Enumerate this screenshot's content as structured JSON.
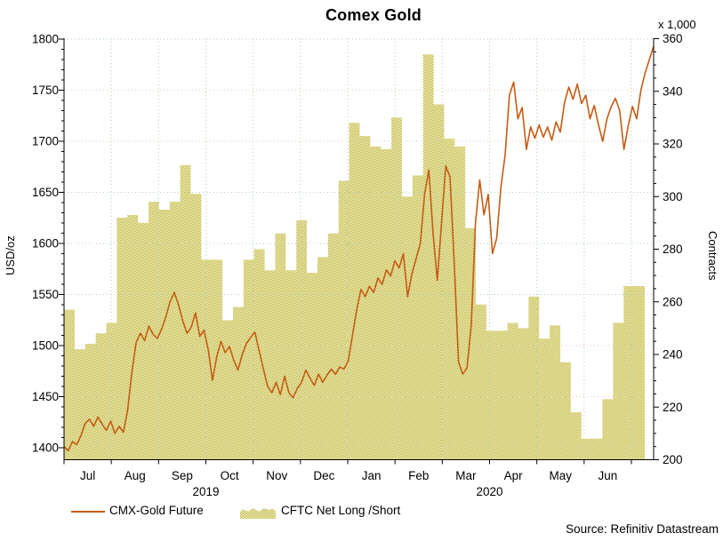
{
  "title": "Comex Gold",
  "source": "Source: Refinitiv Datastream",
  "legend": {
    "line_label": "CMX-Gold Future",
    "area_label": "CFTC Net Long /Short"
  },
  "colors": {
    "line": "#c45c16",
    "area_dot": "#c8c158",
    "area_bg": "#eeeab8",
    "grid_green": "#abd4ab",
    "grid_pink": "#f2c6ae",
    "axis": "#000000",
    "text": "#000000"
  },
  "chart_data": {
    "type": "line+area",
    "title": "Comex Gold",
    "left_axis": {
      "label": "USD/oz",
      "min": 1400,
      "max": 1800,
      "major_step": 50,
      "minor_step": 10,
      "tick_labels": [
        "1400",
        "1450",
        "1500",
        "1550",
        "1600",
        "1650",
        "1700",
        "1750",
        "1800"
      ]
    },
    "right_axis": {
      "label": "Contracts",
      "unit": "x 1,000",
      "min": 200,
      "max": 360,
      "major_step": 20,
      "minor_step": 5,
      "tick_labels": [
        "200",
        "220",
        "240",
        "260",
        "280",
        "300",
        "320",
        "340",
        "360"
      ]
    },
    "x_axis": {
      "months": [
        "Jul",
        "Aug",
        "Sep",
        "Oct",
        "Nov",
        "Dec",
        "Jan",
        "Feb",
        "Mar",
        "Apr",
        "May",
        "Jun"
      ],
      "years": [
        {
          "label": "2019",
          "boundary_index": 3
        },
        {
          "label": "2020",
          "boundary_index": 9
        }
      ]
    },
    "grid": {
      "horizontal_green_values": [
        1800,
        1650,
        1600,
        1550
      ]
    },
    "series": [
      {
        "name": "CMX-Gold Future",
        "type": "line",
        "axis": "left",
        "unit": "USD/oz",
        "values": [
          1401,
          1397,
          1406,
          1403,
          1412,
          1424,
          1428,
          1421,
          1430,
          1423,
          1417,
          1426,
          1414,
          1421,
          1415,
          1437,
          1474,
          1503,
          1512,
          1505,
          1519,
          1511,
          1507,
          1516,
          1528,
          1543,
          1552,
          1540,
          1524,
          1512,
          1518,
          1532,
          1509,
          1515,
          1496,
          1466,
          1489,
          1504,
          1493,
          1499,
          1486,
          1476,
          1491,
          1502,
          1508,
          1513,
          1495,
          1477,
          1460,
          1454,
          1464,
          1452,
          1470,
          1454,
          1449,
          1458,
          1464,
          1476,
          1468,
          1461,
          1472,
          1464,
          1471,
          1477,
          1472,
          1479,
          1477,
          1485,
          1510,
          1535,
          1555,
          1548,
          1558,
          1552,
          1566,
          1560,
          1574,
          1568,
          1583,
          1576,
          1590,
          1548,
          1570,
          1585,
          1600,
          1648,
          1672,
          1610,
          1564,
          1620,
          1676,
          1665,
          1580,
          1484,
          1472,
          1478,
          1520,
          1620,
          1662,
          1628,
          1648,
          1590,
          1605,
          1655,
          1687,
          1745,
          1758,
          1722,
          1733,
          1692,
          1714,
          1703,
          1716,
          1704,
          1714,
          1701,
          1719,
          1709,
          1738,
          1753,
          1741,
          1756,
          1737,
          1745,
          1722,
          1735,
          1716,
          1700,
          1722,
          1734,
          1742,
          1730,
          1692,
          1715,
          1734,
          1722,
          1750,
          1767,
          1780,
          1793
        ]
      },
      {
        "name": "CFTC Net Long /Short",
        "type": "step_area",
        "axis": "right",
        "unit": "x 1,000 Contracts",
        "weekly_values": [
          257,
          242,
          244,
          248,
          252,
          292,
          293,
          290,
          298,
          295,
          298,
          312,
          301,
          276,
          276,
          253,
          258,
          276,
          280,
          272,
          286,
          272,
          291,
          271,
          277,
          286,
          306,
          328,
          323,
          319,
          318,
          330,
          300,
          308,
          354,
          335,
          322,
          319,
          288,
          259,
          249,
          249,
          252,
          250,
          262,
          246,
          251,
          237,
          218,
          208,
          208,
          223,
          252,
          266,
          266
        ]
      }
    ]
  }
}
